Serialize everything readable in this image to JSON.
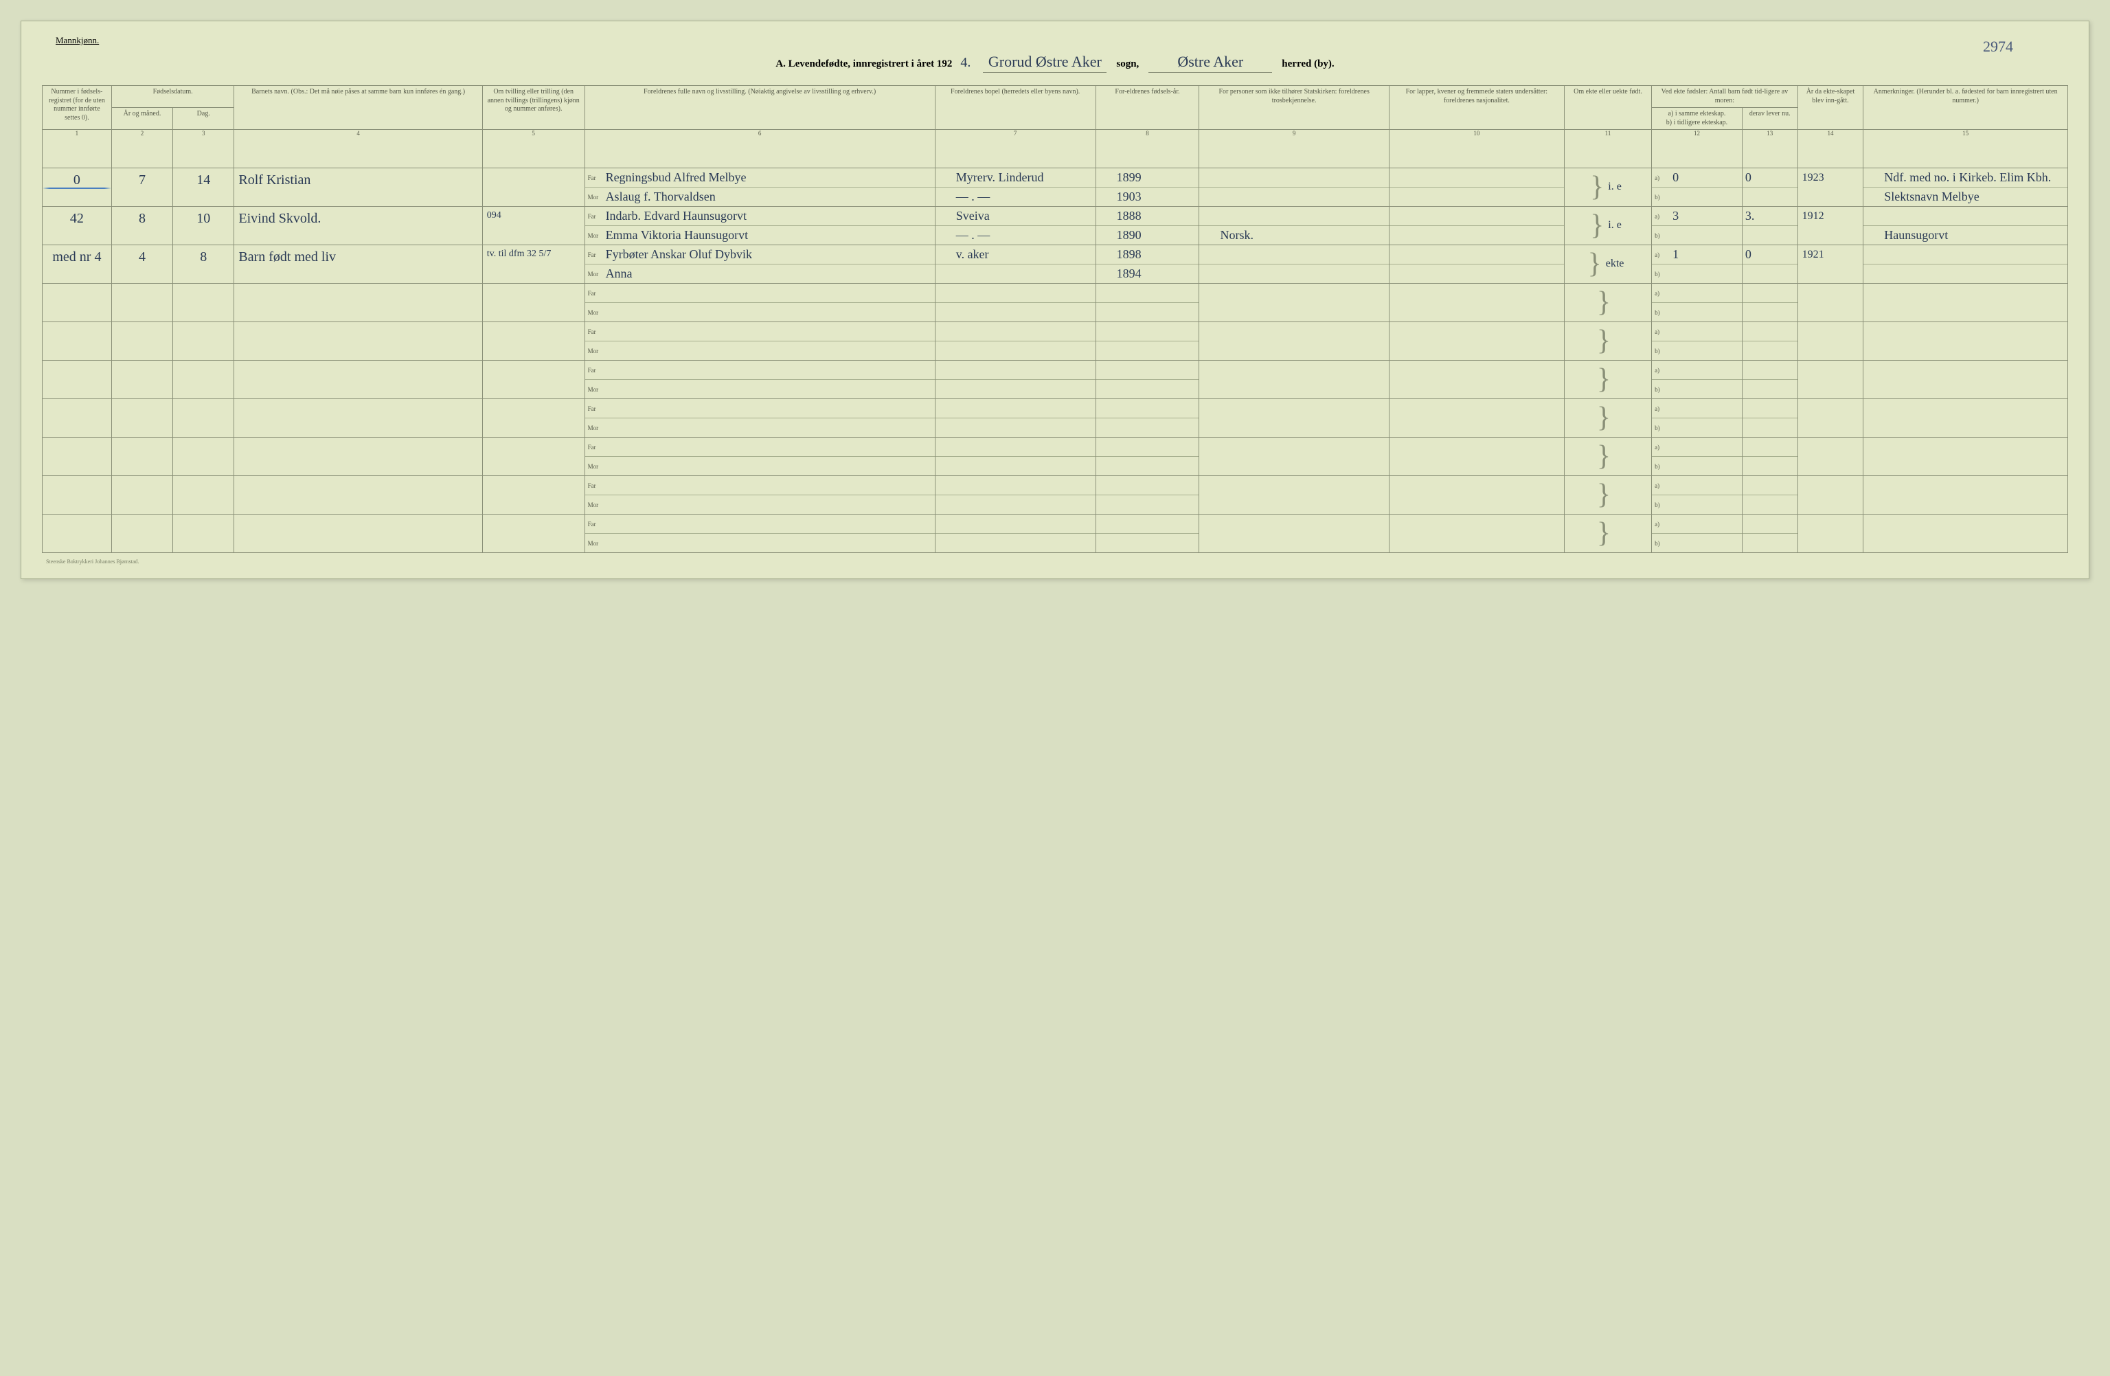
{
  "header": {
    "top_label": "Mannkjønn.",
    "title_prefix": "A.  Levendefødte, innregistrert i året 192",
    "year_suffix": "4.",
    "parish_value": "Grorud Østre Aker",
    "parish_label": "sogn,",
    "district_value": "Østre Aker",
    "district_label": "herred (by).",
    "page_number": "2974"
  },
  "columns": {
    "c1": "Nummer i fødsels-registret (for de uten nummer innførte settes 0).",
    "c2_group": "Fødselsdatum.",
    "c2a": "År og måned.",
    "c2b": "Dag.",
    "c3": "Barnets navn.\n(Obs.: Det må nøie påses at samme barn kun innføres én gang.)",
    "c4": "Om tvilling eller trilling (den annen tvillings (trillingens) kjønn og nummer anføres).",
    "c5": "Foreldrenes fulle navn og livsstilling.\n(Nøiaktig angivelse av livsstilling og erhverv.)",
    "c6": "Foreldrenes bopel (herredets eller byens navn).",
    "c7": "For-eldrenes fødsels-år.",
    "c8": "For personer som ikke tilhører Statskirken: foreldrenes trosbekjennelse.",
    "c9": "For lapper, kvener og fremmede staters undersåtter: foreldrenes nasjonalitet.",
    "c10": "Om ekte eller uekte født.",
    "c11_group": "Ved ekte fødsler: Antall barn født tid-ligere av moren:",
    "c11a": "a) i samme ekteskap.",
    "c11b": "b) i tidligere ekteskap.",
    "c11c": "derav lever nu.",
    "c12": "År da ekte-skapet blev inn-gått.",
    "c13": "Anmerkninger.\n(Herunder bl. a. fødested for barn innregistrert uten nummer.)"
  },
  "colnums": [
    "1",
    "2",
    "3",
    "4",
    "5",
    "6",
    "7",
    "8",
    "9",
    "10",
    "11",
    "12",
    "13",
    "14",
    "15"
  ],
  "row_labels": {
    "far": "Far",
    "mor": "Mor",
    "a": "a)",
    "b": "b)"
  },
  "rows": [
    {
      "num": "0",
      "ym": "7",
      "day": "14",
      "name": "Rolf Kristian",
      "far": "Regningsbud Alfred Melbye",
      "mor": "Aslaug f. Thorvaldsen",
      "res_far": "Myrerv. Linderud",
      "res_mor": "— . —",
      "by_far": "1899",
      "by_mor": "1903",
      "legit": "i. e",
      "prev_a": "0",
      "prev_c": "0",
      "marriage": "1923",
      "notes_a": "Ndf. med no. i Kirkeb. Elim Kbh.",
      "notes_b": "Slektsnavn Melbye",
      "blue_line": true
    },
    {
      "num": "42",
      "ym": "8",
      "day": "10",
      "name": "Eivind Skvold.",
      "twin_note": "094",
      "far": "Indarb. Edvard Haunsugorvt",
      "mor": "Emma Viktoria Haunsugorvt",
      "res_far": "Sveiva",
      "res_mor": "— . —",
      "by_far": "1888",
      "by_mor": "1890",
      "relig_mor": "Norsk.",
      "legit": "i. e",
      "prev_a": "3",
      "prev_c": "3.",
      "marriage": "1912",
      "notes_b": "Haunsugorvt"
    },
    {
      "num": "med nr 4",
      "ym": "4",
      "day": "8",
      "name": "Barn født med liv",
      "twin_note": "tv. til dfm 32  5/7",
      "far": "Fyrbøter Anskar Oluf Dybvik",
      "mor": "Anna",
      "res_far": "v. aker",
      "res_mor": "",
      "by_far": "1898",
      "by_mor": "1894",
      "legit": "ekte",
      "prev_a": "1",
      "prev_c": "0",
      "marriage": "1921"
    }
  ],
  "empty_rows": 7,
  "footer": "Steenske Boktrykkeri Johannes Bjørnstad."
}
